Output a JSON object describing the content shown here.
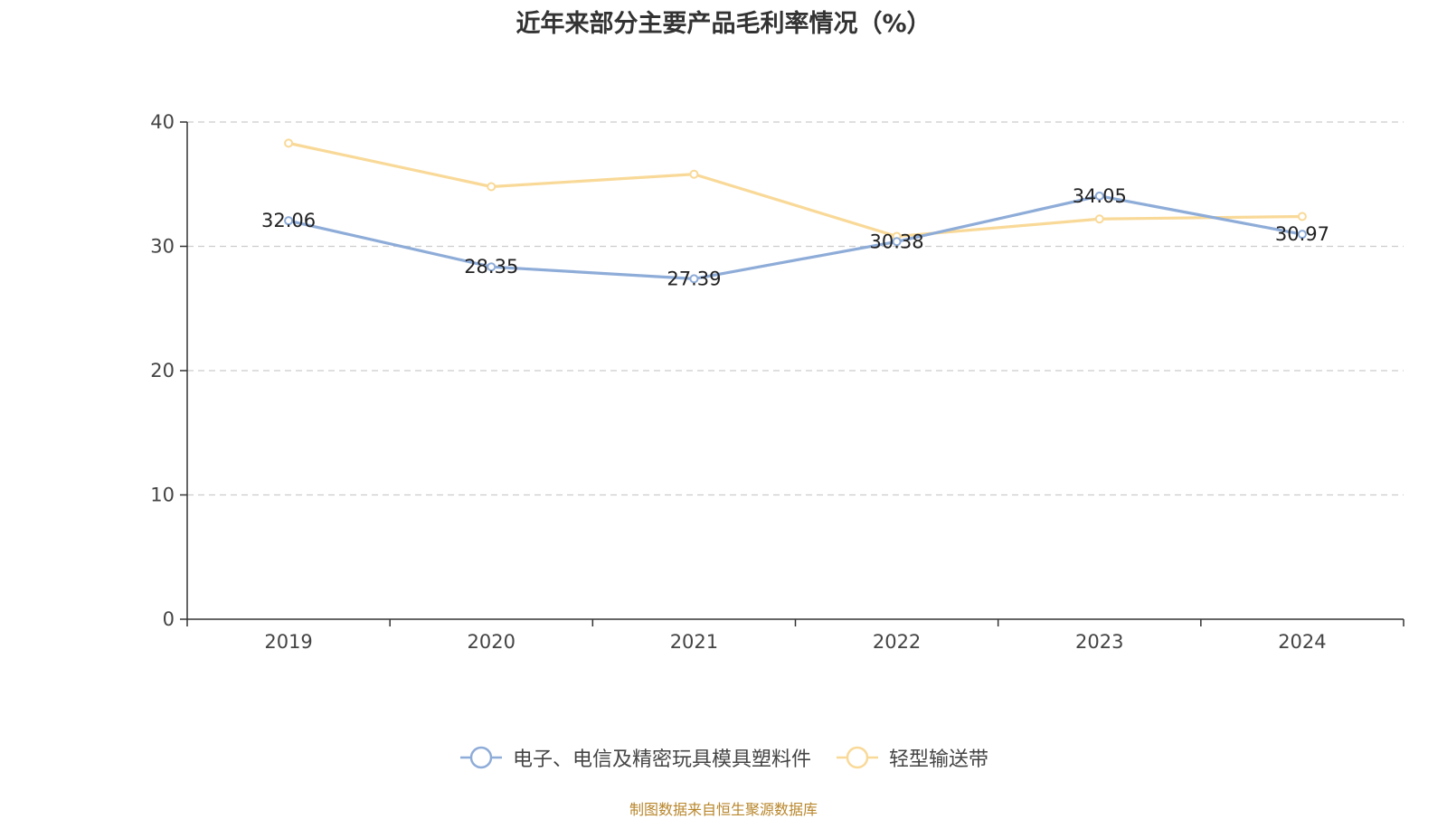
{
  "chart_data": {
    "type": "line",
    "title": "近年来部分主要产品毛利率情况（%）",
    "categories": [
      "2019",
      "2020",
      "2021",
      "2022",
      "2023",
      "2024"
    ],
    "ylim": [
      0,
      40
    ],
    "yticks": [
      "0",
      "10",
      "20",
      "30",
      "40"
    ],
    "grid": true,
    "legend_position": "bottom",
    "series": [
      {
        "name": "电子、电信及精密玩具模具塑料件",
        "color": "#8eacd8",
        "values": [
          32.06,
          28.35,
          27.39,
          30.38,
          34.05,
          30.97
        ],
        "labels": [
          "32.06",
          "28.35",
          "27.39",
          "30.38",
          "34.05",
          "30.97"
        ]
      },
      {
        "name": "轻型输送带",
        "color": "#f9d998",
        "values": [
          38.3,
          34.8,
          35.8,
          30.8,
          32.2,
          32.4
        ]
      }
    ]
  },
  "source_note": "制图数据来自恒生聚源数据库"
}
